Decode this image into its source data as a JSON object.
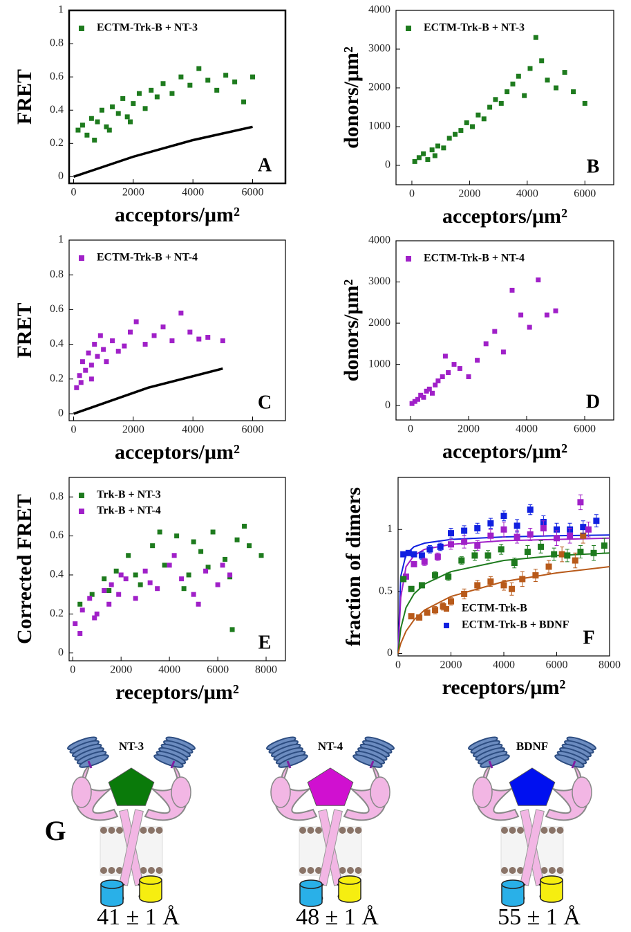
{
  "chart_data": [
    {
      "type": "scatter",
      "annotation": "A",
      "xlabel": "acceptors/μm²",
      "ylabel": "FRET",
      "legend": "upper left",
      "xlim": [
        -150,
        7100
      ],
      "ylim": [
        -0.04,
        1
      ],
      "xticks": [
        0,
        2000,
        4000,
        6000
      ],
      "yticks": [
        0,
        0.2,
        0.4,
        0.6,
        0.8,
        1
      ],
      "series": [
        {
          "name": "ECTM-Trk-B + NT-3",
          "color": "#1e7b1e",
          "x": [
            150,
            300,
            450,
            600,
            800,
            950,
            1100,
            1300,
            1500,
            1650,
            1800,
            2000,
            2200,
            2400,
            2600,
            2800,
            3000,
            3300,
            3600,
            3900,
            4200,
            4500,
            4800,
            5100,
            5400,
            5700,
            6000,
            700,
            1200,
            1900
          ],
          "y": [
            0.28,
            0.31,
            0.25,
            0.35,
            0.33,
            0.4,
            0.3,
            0.42,
            0.38,
            0.47,
            0.36,
            0.44,
            0.5,
            0.41,
            0.52,
            0.48,
            0.56,
            0.5,
            0.6,
            0.55,
            0.65,
            0.58,
            0.52,
            0.61,
            0.57,
            0.45,
            0.6,
            0.22,
            0.28,
            0.33
          ]
        },
        {
          "mode": "line",
          "color": "#000000",
          "x": [
            0,
            2000,
            4000,
            6000
          ],
          "y": [
            0,
            0.12,
            0.22,
            0.3
          ]
        }
      ]
    },
    {
      "type": "scatter",
      "annotation": "B",
      "xlabel": "acceptors/μm²",
      "ylabel": "donors/μm²",
      "legend": "upper left",
      "xlim": [
        -550,
        7000
      ],
      "ylim": [
        -500,
        4000
      ],
      "xticks": [
        0,
        2000,
        4000,
        6000
      ],
      "yticks": [
        0,
        1000,
        2000,
        3000,
        4000
      ],
      "series": [
        {
          "name": "ECTM-Trk-B + NT-3",
          "color": "#1e7b1e",
          "x": [
            100,
            250,
            400,
            550,
            700,
            900,
            1100,
            1300,
            1500,
            1700,
            1900,
            2100,
            2300,
            2500,
            2700,
            2900,
            3100,
            3300,
            3500,
            3700,
            3900,
            4100,
            4300,
            4500,
            4700,
            5000,
            5300,
            5600,
            6000,
            800
          ],
          "y": [
            100,
            200,
            300,
            150,
            400,
            500,
            450,
            700,
            800,
            900,
            1100,
            1000,
            1300,
            1200,
            1500,
            1700,
            1600,
            1900,
            2100,
            2300,
            1800,
            2500,
            3300,
            2700,
            2200,
            2000,
            2400,
            1900,
            1600,
            250
          ]
        }
      ]
    },
    {
      "type": "scatter",
      "annotation": "C",
      "xlabel": "acceptors/μm²",
      "ylabel": "FRET",
      "legend": "upper left",
      "xlim": [
        -150,
        7100
      ],
      "ylim": [
        -0.04,
        1
      ],
      "xticks": [
        0,
        2000,
        4000,
        6000
      ],
      "yticks": [
        0,
        0.2,
        0.4,
        0.6,
        0.8,
        1
      ],
      "series": [
        {
          "name": "ECTM-Trk-B + NT-4",
          "color": "#a020c8",
          "x": [
            100,
            200,
            300,
            400,
            500,
            600,
            700,
            800,
            900,
            1000,
            1100,
            1300,
            1500,
            1700,
            1900,
            2100,
            2400,
            2700,
            3000,
            3300,
            3600,
            3900,
            4200,
            4500,
            5000,
            250,
            600
          ],
          "y": [
            0.15,
            0.22,
            0.3,
            0.25,
            0.35,
            0.28,
            0.4,
            0.33,
            0.45,
            0.37,
            0.3,
            0.42,
            0.36,
            0.39,
            0.47,
            0.53,
            0.4,
            0.45,
            0.5,
            0.42,
            0.58,
            0.47,
            0.43,
            0.44,
            0.42,
            0.18,
            0.2
          ]
        },
        {
          "mode": "line",
          "color": "#000000",
          "x": [
            0,
            2500,
            5000
          ],
          "y": [
            0,
            0.15,
            0.26
          ]
        }
      ]
    },
    {
      "type": "scatter",
      "annotation": "D",
      "xlabel": "acceptors/μm²",
      "ylabel": "donors/μm²",
      "legend": "upper left",
      "xlim": [
        -500,
        7000
      ],
      "ylim": [
        -350,
        4000
      ],
      "xticks": [
        0,
        2000,
        4000,
        6000
      ],
      "yticks": [
        0,
        1000,
        2000,
        3000,
        4000
      ],
      "series": [
        {
          "name": "ECTM-Trk-B + NT-4",
          "color": "#a020c8",
          "x": [
            50,
            150,
            250,
            350,
            450,
            550,
            650,
            750,
            850,
            950,
            1100,
            1300,
            1500,
            1700,
            2000,
            2300,
            2600,
            2900,
            3200,
            3500,
            3800,
            4100,
            4400,
            4700,
            5000,
            1200
          ],
          "y": [
            50,
            100,
            150,
            250,
            200,
            350,
            400,
            300,
            500,
            600,
            700,
            800,
            1000,
            900,
            700,
            1100,
            1500,
            1800,
            1300,
            2800,
            2200,
            1900,
            3050,
            2200,
            2300,
            1200
          ]
        }
      ]
    },
    {
      "type": "scatter",
      "annotation": "E",
      "xlabel": "receptors/μm²",
      "ylabel": "Corrected FRET",
      "legend": "upper left",
      "xlim": [
        -150,
        8800
      ],
      "ylim": [
        -0.04,
        0.9
      ],
      "xticks": [
        0,
        2000,
        4000,
        6000,
        8000
      ],
      "yticks": [
        0,
        0.2,
        0.4,
        0.6,
        0.8
      ],
      "series": [
        {
          "name": "Trk-B + NT-3",
          "color": "#1e7b1e",
          "x": [
            300,
            800,
            1300,
            1800,
            2300,
            2800,
            3300,
            3800,
            4300,
            4800,
            5300,
            5800,
            6300,
            6800,
            7300,
            7800,
            2600,
            3600,
            4600,
            5600,
            6600,
            7100,
            6500,
            1500,
            5000
          ],
          "y": [
            0.25,
            0.3,
            0.38,
            0.42,
            0.5,
            0.35,
            0.55,
            0.45,
            0.6,
            0.4,
            0.52,
            0.62,
            0.48,
            0.58,
            0.55,
            0.5,
            0.4,
            0.62,
            0.33,
            0.44,
            0.12,
            0.65,
            0.39,
            0.32,
            0.57
          ]
        },
        {
          "name": "Trk-B + NT-4",
          "color": "#a020c8",
          "x": [
            100,
            400,
            700,
            1000,
            1300,
            1600,
            1900,
            2200,
            2600,
            3000,
            3500,
            4000,
            4500,
            5000,
            5500,
            6000,
            6500,
            300,
            900,
            1500,
            2000,
            3200,
            4200,
            5200,
            6200
          ],
          "y": [
            0.15,
            0.22,
            0.28,
            0.2,
            0.32,
            0.35,
            0.3,
            0.38,
            0.28,
            0.42,
            0.33,
            0.45,
            0.38,
            0.3,
            0.42,
            0.35,
            0.4,
            0.1,
            0.18,
            0.25,
            0.4,
            0.36,
            0.5,
            0.25,
            0.45
          ]
        }
      ]
    },
    {
      "type": "scatter",
      "annotation": "F",
      "xlabel": "receptors/μm²",
      "ylabel": "fraction of dimers",
      "legend": "lower right",
      "xlim": [
        0,
        8000
      ],
      "ylim": [
        -0.02,
        1.42
      ],
      "xticks": [
        0,
        2000,
        4000,
        6000,
        8000
      ],
      "yticks": [
        0,
        0.5,
        1
      ],
      "series": [
        {
          "name": "ECTM-Trk-B",
          "color": "#b85a1a",
          "x": [
            500,
            800,
            1100,
            1400,
            1700,
            2000,
            2500,
            3000,
            3500,
            4000,
            4300,
            4700,
            5200,
            5700,
            6200,
            6700,
            7000
          ],
          "y": [
            0.3,
            0.29,
            0.33,
            0.35,
            0.38,
            0.42,
            0.48,
            0.55,
            0.58,
            0.55,
            0.52,
            0.6,
            0.63,
            0.7,
            0.8,
            0.75,
            0.95
          ],
          "errors": [
            0.02,
            0.02,
            0.02,
            0.03,
            0.03,
            0.03,
            0.04,
            0.04,
            0.04,
            0.04,
            0.05,
            0.06,
            0.05,
            0.05,
            0.06,
            0.06,
            0.06
          ]
        },
        {
          "name": "ECTM-Trk-B + BDNF",
          "color": "#1020e0",
          "x": [
            200,
            400,
            600,
            900,
            1200,
            1600,
            2000,
            2500,
            3000,
            3500,
            4000,
            4500,
            5000,
            5500,
            6000,
            6500,
            7000,
            7500
          ],
          "y": [
            0.8,
            0.81,
            0.8,
            0.79,
            0.84,
            0.86,
            0.97,
            0.99,
            1.01,
            1.05,
            1.11,
            1.03,
            1.16,
            1.06,
            1.0,
            1.0,
            1.02,
            1.07
          ],
          "errors": [
            0.02,
            0.02,
            0.02,
            0.03,
            0.03,
            0.03,
            0.04,
            0.04,
            0.04,
            0.04,
            0.04,
            0.05,
            0.04,
            0.05,
            0.05,
            0.05,
            0.05,
            0.05
          ]
        },
        {
          "color": "#a020c8",
          "x": [
            300,
            600,
            1000,
            1500,
            2000,
            2500,
            3000,
            3500,
            4000,
            4500,
            5000,
            5500,
            6000,
            6500,
            6900,
            7200
          ],
          "y": [
            0.62,
            0.72,
            0.74,
            0.78,
            0.88,
            0.9,
            0.87,
            0.95,
            1.0,
            0.94,
            0.96,
            1.01,
            0.93,
            0.95,
            1.22,
            1.0
          ],
          "errors": [
            0.02,
            0.02,
            0.03,
            0.03,
            0.04,
            0.05,
            0.04,
            0.05,
            0.06,
            0.05,
            0.05,
            0.06,
            0.06,
            0.06,
            0.06,
            0.06
          ]
        },
        {
          "color": "#1e7b1e",
          "x": [
            200,
            500,
            900,
            1400,
            1900,
            2400,
            2900,
            3400,
            3900,
            4400,
            4900,
            5400,
            5900,
            6400,
            6900,
            7400,
            7800
          ],
          "y": [
            0.6,
            0.52,
            0.55,
            0.63,
            0.62,
            0.75,
            0.79,
            0.79,
            0.84,
            0.73,
            0.82,
            0.86,
            0.8,
            0.79,
            0.82,
            0.81,
            0.87
          ],
          "errors": [
            0.02,
            0.02,
            0.02,
            0.03,
            0.03,
            0.03,
            0.04,
            0.04,
            0.04,
            0.04,
            0.05,
            0.05,
            0.05,
            0.05,
            0.05,
            0.06,
            0.06
          ]
        },
        {
          "mode": "line",
          "color": "#1020e0",
          "x": [
            0,
            100,
            300,
            600,
            1000,
            2000,
            4000,
            6000,
            8000
          ],
          "y": [
            0,
            0.62,
            0.8,
            0.86,
            0.89,
            0.92,
            0.94,
            0.95,
            0.955
          ]
        },
        {
          "mode": "line",
          "color": "#a020c8",
          "x": [
            0,
            100,
            300,
            600,
            1000,
            2000,
            4000,
            6000,
            8000
          ],
          "y": [
            0,
            0.45,
            0.7,
            0.79,
            0.84,
            0.88,
            0.91,
            0.92,
            0.93
          ]
        },
        {
          "mode": "line",
          "color": "#1e7b1e",
          "x": [
            0,
            100,
            300,
            600,
            1000,
            2000,
            4000,
            6000,
            8000
          ],
          "y": [
            0,
            0.2,
            0.37,
            0.48,
            0.56,
            0.66,
            0.75,
            0.79,
            0.81
          ]
        },
        {
          "mode": "line",
          "color": "#b85a1a",
          "x": [
            0,
            100,
            300,
            600,
            1000,
            2000,
            4000,
            6000,
            8000
          ],
          "y": [
            0,
            0.08,
            0.18,
            0.27,
            0.35,
            0.46,
            0.58,
            0.65,
            0.7
          ]
        }
      ]
    }
  ],
  "diagram": {
    "panel_label": "G",
    "items": [
      {
        "ligand": "NT-3",
        "color": "#0a7a0a",
        "distance": "41 ± 1 Å"
      },
      {
        "ligand": "NT-4",
        "color": "#d010d0",
        "distance": "48 ± 1 Å"
      },
      {
        "ligand": "BDNF",
        "color": "#0010f0",
        "distance": "55 ± 1 Å"
      }
    ]
  }
}
